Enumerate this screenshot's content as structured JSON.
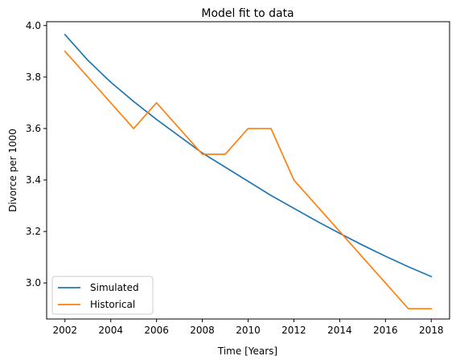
{
  "chart_data": {
    "type": "line",
    "title": "Model fit to data",
    "xlabel": "Time [Years]",
    "ylabel": "Divorce per 1000",
    "xlim": [
      2001.2,
      2018.8
    ],
    "ylim": [
      2.86,
      4.015
    ],
    "xticks": [
      2002,
      2004,
      2006,
      2008,
      2010,
      2012,
      2014,
      2016,
      2018
    ],
    "yticks": [
      3.0,
      3.2,
      3.4,
      3.6,
      3.8,
      4.0
    ],
    "ytick_labels": [
      "3.0",
      "3.2",
      "3.4",
      "3.6",
      "3.8",
      "4.0"
    ],
    "grid": false,
    "legend_position": "lower-left",
    "series": [
      {
        "name": "Simulated",
        "color": "#1f77b4",
        "x": [
          2002,
          2003,
          2004,
          2005,
          2006,
          2007,
          2008,
          2009,
          2010,
          2011,
          2012,
          2013,
          2014,
          2015,
          2016,
          2017,
          2018
        ],
        "y": [
          3.965,
          3.865,
          3.78,
          3.705,
          3.635,
          3.57,
          3.505,
          3.45,
          3.395,
          3.34,
          3.29,
          3.24,
          3.193,
          3.147,
          3.104,
          3.063,
          3.025
        ]
      },
      {
        "name": "Historical",
        "color": "#ff7f0e",
        "x": [
          2002,
          2005,
          2006,
          2008,
          2009,
          2010,
          2011,
          2012,
          2014,
          2017,
          2018
        ],
        "y": [
          3.9,
          3.6,
          3.7,
          3.5,
          3.5,
          3.6,
          3.6,
          3.4,
          3.2,
          2.9,
          2.9
        ]
      }
    ]
  }
}
